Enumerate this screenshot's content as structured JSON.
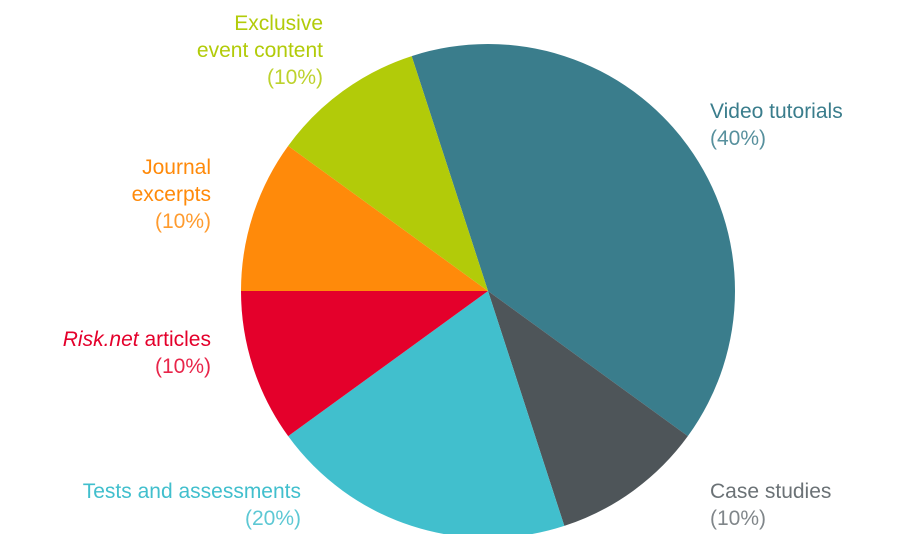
{
  "chart_data": {
    "type": "pie",
    "title": "",
    "slices": [
      {
        "label": "Video tutorials",
        "value": 40,
        "percent_label": "(40%)",
        "color": "#3a7d8c"
      },
      {
        "label": "Case studies",
        "value": 10,
        "percent_label": "(10%)",
        "color": "#4e5559"
      },
      {
        "label": "Tests and assessments",
        "value": 20,
        "percent_label": "(20%)",
        "color": "#41bfcd"
      },
      {
        "label_italic": "Risk.net",
        "label": "articles",
        "value": 10,
        "percent_label": "(10%)",
        "color": "#e4002b"
      },
      {
        "label": "Journal excerpts",
        "value": 10,
        "percent_label": "(10%)",
        "color": "#ff8a0a"
      },
      {
        "label": "Exclusive event content",
        "value": 10,
        "percent_label": "(10%)",
        "color": "#b2cb09"
      }
    ],
    "label_colors": {
      "Video tutorials": "#3a7d8c",
      "Case studies": "#6b7276",
      "Tests and assessments": "#41bfcd",
      "Risk.net articles": "#e4002b",
      "Journal excerpts": "#ff8a0a",
      "Exclusive event content": "#b2cb09"
    }
  }
}
